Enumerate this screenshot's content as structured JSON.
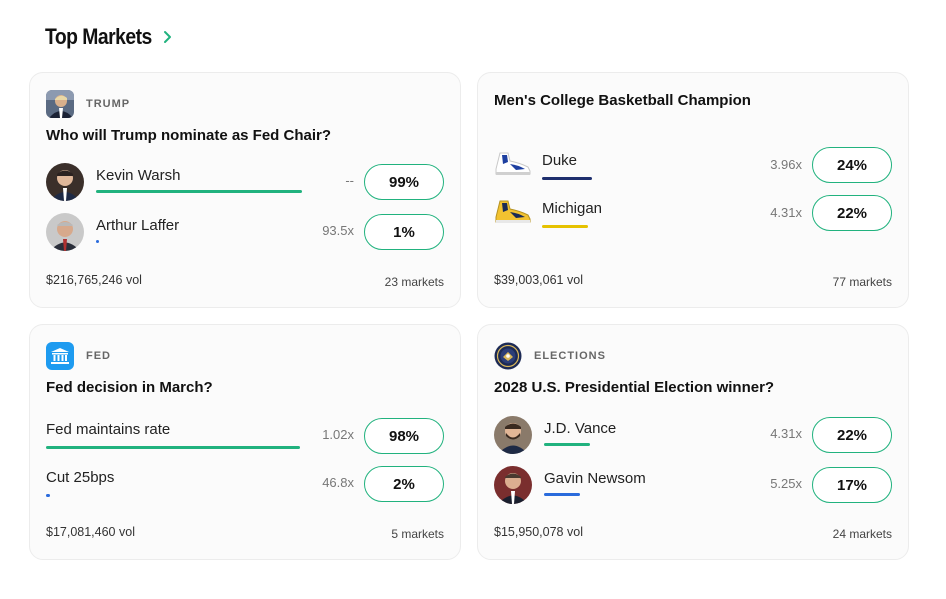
{
  "header": {
    "title": "Top Markets"
  },
  "colors": {
    "accent": "#21b27e",
    "blue_bar": "#2a6bdc",
    "navy_bar": "#1e2f6e",
    "yellow_bar": "#e6c200"
  },
  "cards": [
    {
      "category": "TRUMP",
      "question": "Who will Trump nominate as Fed Chair?",
      "options": [
        {
          "label": "Kevin Warsh",
          "multiplier": "--",
          "percent": "99%",
          "share": 0.99
        },
        {
          "label": "Arthur Laffer",
          "multiplier": "93.5x",
          "percent": "1%",
          "share": 0.01
        }
      ],
      "volume": "$216,765,246 vol",
      "markets": "23 markets"
    },
    {
      "category": "",
      "question": "Men's College Basketball Champion",
      "options": [
        {
          "label": "Duke",
          "multiplier": "3.96x",
          "percent": "24%"
        },
        {
          "label": "Michigan",
          "multiplier": "4.31x",
          "percent": "22%"
        }
      ],
      "volume": "$39,003,061 vol",
      "markets": "77 markets"
    },
    {
      "category": "FED",
      "question": "Fed decision in March?",
      "options": [
        {
          "label": "Fed maintains rate",
          "multiplier": "1.02x",
          "percent": "98%",
          "share": 0.98
        },
        {
          "label": "Cut 25bps",
          "multiplier": "46.8x",
          "percent": "2%",
          "share": 0.02
        }
      ],
      "volume": "$17,081,460 vol",
      "markets": "5 markets"
    },
    {
      "category": "ELECTIONS",
      "question": "2028 U.S. Presidential Election winner?",
      "options": [
        {
          "label": "J.D. Vance",
          "multiplier": "4.31x",
          "percent": "22%",
          "share": 0.22
        },
        {
          "label": "Gavin Newsom",
          "multiplier": "5.25x",
          "percent": "17%",
          "share": 0.17
        }
      ],
      "volume": "$15,950,078 vol",
      "markets": "24 markets"
    }
  ]
}
